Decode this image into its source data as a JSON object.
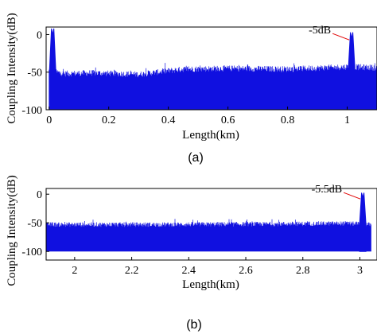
{
  "chart_data": [
    {
      "type": "line",
      "caption": "(a)",
      "xlabel": "Length(km)",
      "ylabel": "Coupling Intensity(dB)",
      "xlim": [
        -0.01,
        1.1
      ],
      "ylim": [
        -100,
        10
      ],
      "xticks": [
        "0",
        "0.2",
        "0.4",
        "0.6",
        "0.8",
        "1"
      ],
      "xtick_values": [
        0,
        0.2,
        0.4,
        0.6,
        0.8,
        1
      ],
      "yticks": [
        "0",
        "-50",
        "-100"
      ],
      "ytick_values": [
        0,
        -50,
        -100
      ],
      "color": "#1010e0",
      "series": [
        {
          "noise_floor": -100,
          "envelope": [
            [
              0,
              -48
            ],
            [
              0.05,
              -52
            ],
            [
              0.15,
              -51
            ],
            [
              0.3,
              -53
            ],
            [
              0.45,
              -46
            ],
            [
              0.6,
              -45
            ],
            [
              0.8,
              -46
            ],
            [
              1.0,
              -43
            ],
            [
              1.1,
              -44
            ]
          ],
          "peaks": [
            {
              "x": 0.012,
              "y": 0
            },
            {
              "x": 1.015,
              "y": -5
            }
          ]
        }
      ],
      "annotations": [
        {
          "text": "-5dB",
          "x": 1.015,
          "y": -5
        }
      ],
      "grid": false
    },
    {
      "type": "line",
      "caption": "(b)",
      "xlabel": "Length(km)",
      "ylabel": "Coupling Intensity(dB)",
      "xlim": [
        1.9,
        3.06
      ],
      "ylim": [
        -115,
        10
      ],
      "xticks": [
        "2",
        "2.2",
        "2.4",
        "2.6",
        "2.8",
        "3"
      ],
      "xtick_values": [
        2,
        2.2,
        2.4,
        2.6,
        2.8,
        3
      ],
      "yticks": [
        "0",
        "-50",
        "-100"
      ],
      "ytick_values": [
        0,
        -50,
        -100
      ],
      "color": "#1010e0",
      "series": [
        {
          "noise_floor": -100,
          "envelope": [
            [
              1.9,
              -53
            ],
            [
              2.3,
              -53
            ],
            [
              2.7,
              -52
            ],
            [
              2.95,
              -51
            ],
            [
              3.04,
              -53
            ]
          ],
          "peaks": [
            {
              "x": 3.01,
              "y": -5.5
            }
          ]
        }
      ],
      "annotations": [
        {
          "text": "-5.5dB",
          "x": 3.01,
          "y": -5.5
        }
      ],
      "grid": false
    }
  ]
}
